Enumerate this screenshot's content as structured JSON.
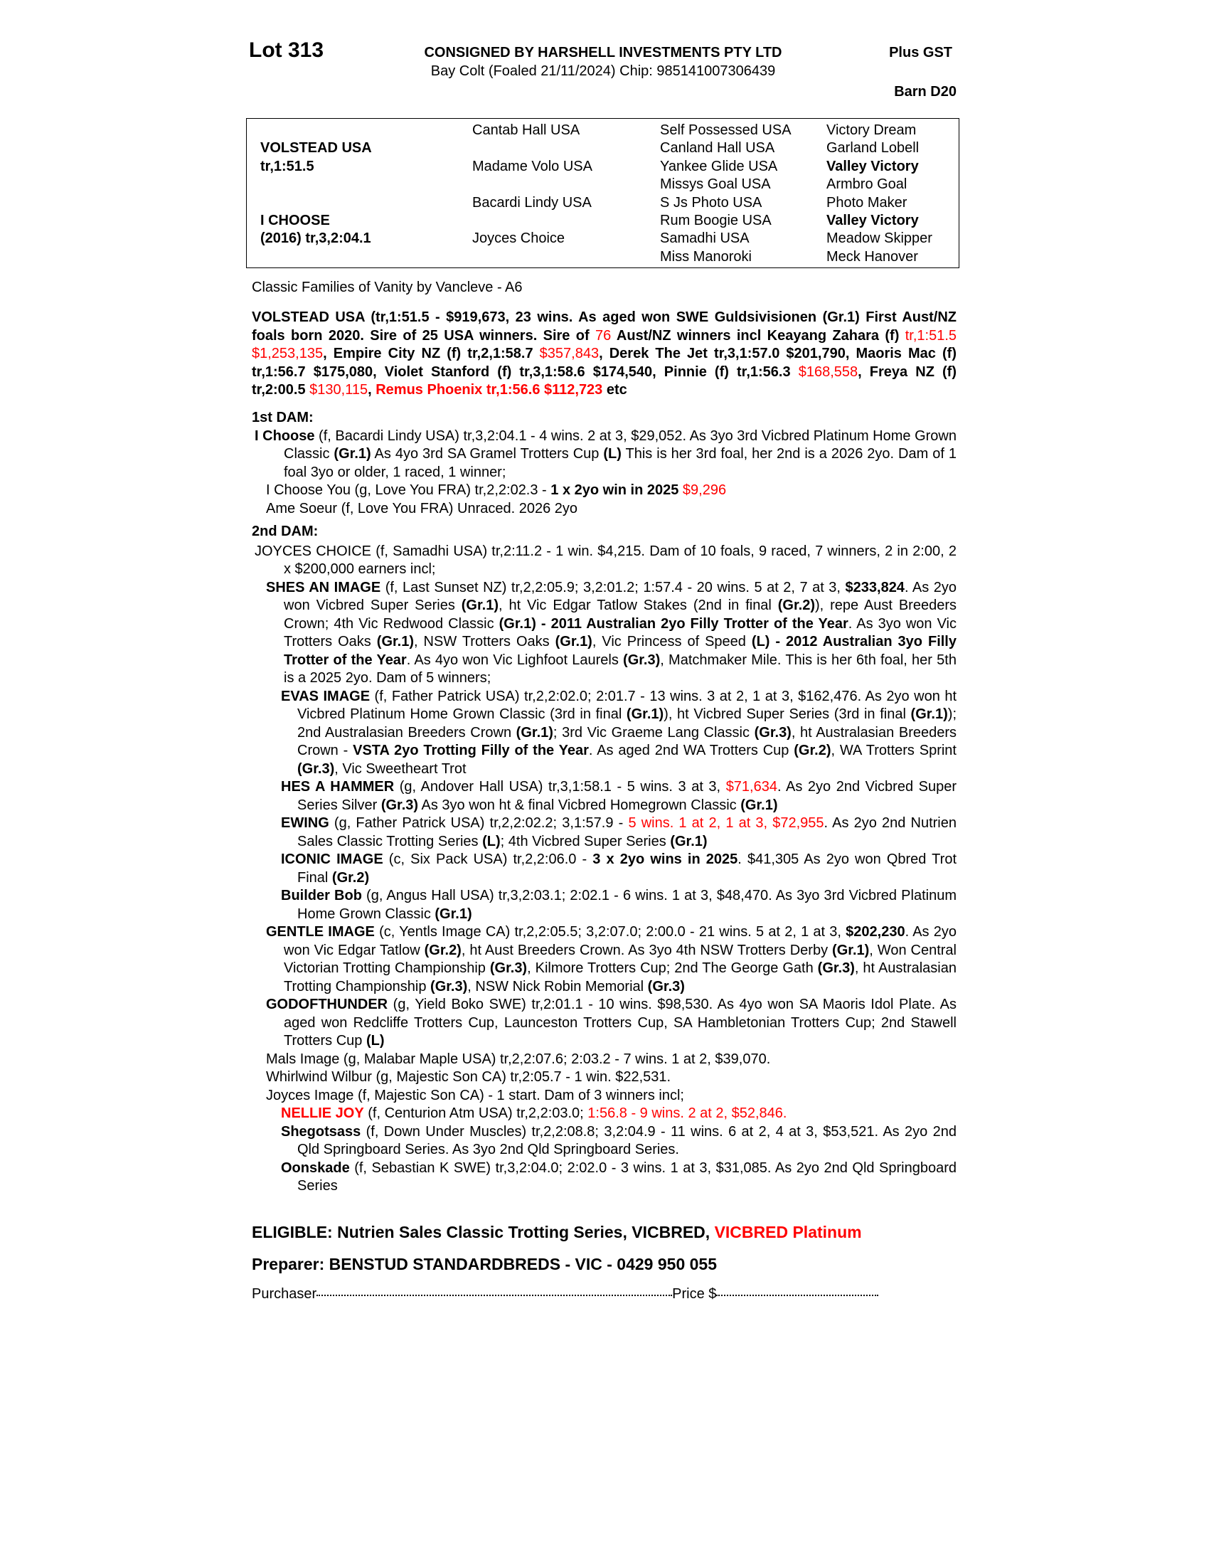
{
  "header": {
    "lot": "Lot 313",
    "consigned": "CONSIGNED BY HARSHELL INVESTMENTS PTY LTD",
    "description": "Bay Colt (Foaled 21/11/2024) Chip: 985141007306439",
    "gst": "Plus GST",
    "barn": "Barn D20"
  },
  "pedigree": {
    "col1": [
      {
        "row": 2,
        "text": "VOLSTEAD USA",
        "bold": true
      },
      {
        "row": 3,
        "text": "tr,1:51.5",
        "bold": true
      },
      {
        "row": 6,
        "text": "I CHOOSE",
        "bold": true
      },
      {
        "row": 7,
        "text": "(2016) tr,3,2:04.1",
        "bold": true
      }
    ],
    "col2": [
      {
        "row": 1,
        "text": "Cantab Hall USA"
      },
      {
        "row": 3,
        "text": "Madame Volo USA"
      },
      {
        "row": 5,
        "text": "Bacardi Lindy USA"
      },
      {
        "row": 7,
        "text": "Joyces Choice"
      }
    ],
    "col3": [
      {
        "row": 1,
        "text": "Self Possessed USA"
      },
      {
        "row": 2,
        "text": "Canland Hall USA"
      },
      {
        "row": 3,
        "text": "Yankee Glide USA"
      },
      {
        "row": 4,
        "text": "Missys Goal USA"
      },
      {
        "row": 5,
        "text": "S Js Photo USA"
      },
      {
        "row": 6,
        "text": "Rum Boogie USA"
      },
      {
        "row": 7,
        "text": "Samadhi USA"
      },
      {
        "row": 8,
        "text": "Miss Manoroki"
      }
    ],
    "col4": [
      {
        "row": 1,
        "text": "Victory Dream"
      },
      {
        "row": 2,
        "text": "Garland Lobell"
      },
      {
        "row": 3,
        "text": "Valley Victory",
        "bold": true
      },
      {
        "row": 4,
        "text": "Armbro Goal"
      },
      {
        "row": 5,
        "text": "Photo Maker"
      },
      {
        "row": 6,
        "text": "Valley Victory",
        "bold": true
      },
      {
        "row": 7,
        "text": "Meadow Skipper"
      },
      {
        "row": 8,
        "text": "Meck Hanover"
      }
    ]
  },
  "family": "Classic Families of Vanity by Vancleve - A6",
  "sire_para": [
    {
      "t": "VOLSTEAD USA (tr,1:51.5 - $919,673, 23 wins. As aged won SWE Guldsivisionen (Gr.1) First Aust/NZ foals born 2020. Sire of 25 USA winners. Sire of ",
      "s": "b"
    },
    {
      "t": "76",
      "s": "r"
    },
    {
      "t": " Aust/NZ winners incl Keayang Zahara (f) ",
      "s": "b"
    },
    {
      "t": "tr,1:51.5 $1,253,135",
      "s": "r"
    },
    {
      "t": ", Empire City NZ (f) tr,2,1:58.7 ",
      "s": "b"
    },
    {
      "t": "$357,843",
      "s": "r"
    },
    {
      "t": ", Derek The Jet tr,3,1:57.0 $201,790, Maoris Mac (f) tr,1:56.7 $175,080, Violet Stanford (f) tr,3,1:58.6 $174,540, Pinnie (f) tr,1:56.3 ",
      "s": "b"
    },
    {
      "t": "$168,558",
      "s": "r"
    },
    {
      "t": ", Freya NZ (f) tr,2:00.5 ",
      "s": "b"
    },
    {
      "t": "$130,115",
      "s": "r"
    },
    {
      "t": ", ",
      "s": "b"
    },
    {
      "t": "Remus Phoenix tr,1:56.6 $112,723",
      "s": "br"
    },
    {
      "t": " etc",
      "s": "b"
    }
  ],
  "dam1": {
    "heading": "1st DAM:",
    "entries": [
      {
        "level": 0,
        "runs": [
          {
            "t": "I Choose",
            "s": "b"
          },
          {
            "t": " (f, Bacardi Lindy USA) tr,3,2:04.1 - 4 wins. 2 at 3, $29,052. As 3yo 3rd Vicbred Platinum Home Grown Classic ",
            "s": ""
          },
          {
            "t": "(Gr.1)",
            "s": "b"
          },
          {
            "t": " As 4yo 3rd SA Gramel Trotters Cup ",
            "s": ""
          },
          {
            "t": "(L)",
            "s": "b"
          },
          {
            "t": " This is her 3rd foal, her 2nd is a 2026 2yo. Dam of 1 foal 3yo or older, 1 raced, 1 winner;",
            "s": ""
          }
        ]
      },
      {
        "level": 1,
        "runs": [
          {
            "t": "I Choose You (g, Love You FRA) tr,2,2:02.3 - ",
            "s": ""
          },
          {
            "t": "1 x 2yo win in 2025",
            "s": "b"
          },
          {
            "t": " $9,296",
            "s": "r"
          }
        ]
      },
      {
        "level": 1,
        "runs": [
          {
            "t": "Ame Soeur (f, Love You FRA) Unraced. 2026 2yo",
            "s": ""
          }
        ]
      }
    ]
  },
  "dam2": {
    "heading": "2nd DAM:",
    "entries": [
      {
        "level": 0,
        "runs": [
          {
            "t": "JOYCES CHOICE (f, Samadhi USA) tr,2:11.2 - 1 win. $4,215. Dam of 10 foals, 9 raced, 7 winners, 2 in 2:00, 2 x $200,000 earners incl;",
            "s": ""
          }
        ]
      },
      {
        "level": 1,
        "runs": [
          {
            "t": "SHES AN IMAGE",
            "s": "b"
          },
          {
            "t": " (f, Last Sunset NZ) tr,2,2:05.9; 3,2:01.2; 1:57.4 - 20 wins. 5 at 2, 7 at 3, ",
            "s": ""
          },
          {
            "t": "$233,824",
            "s": "b"
          },
          {
            "t": ". As 2yo won Vicbred Super Series ",
            "s": ""
          },
          {
            "t": "(Gr.1)",
            "s": "b"
          },
          {
            "t": ", ht Vic Edgar Tatlow Stakes (2nd in final ",
            "s": ""
          },
          {
            "t": "(Gr.2)",
            "s": "b"
          },
          {
            "t": "), repe Aust Breeders Crown; 4th Vic Redwood Classic ",
            "s": ""
          },
          {
            "t": "(Gr.1) - 2011 Australian 2yo Filly Trotter of the Year",
            "s": "b"
          },
          {
            "t": ". As 3yo won Vic Trotters Oaks ",
            "s": ""
          },
          {
            "t": "(Gr.1)",
            "s": "b"
          },
          {
            "t": ", NSW Trotters Oaks ",
            "s": ""
          },
          {
            "t": "(Gr.1)",
            "s": "b"
          },
          {
            "t": ", Vic Princess of Speed ",
            "s": ""
          },
          {
            "t": "(L) - 2012 Australian 3yo Filly Trotter of the Year",
            "s": "b"
          },
          {
            "t": ". As 4yo won Vic Lighfoot Laurels ",
            "s": ""
          },
          {
            "t": "(Gr.3)",
            "s": "b"
          },
          {
            "t": ", Matchmaker Mile. This is her 6th foal, her 5th is a 2025 2yo. Dam of 5 winners;",
            "s": ""
          }
        ]
      },
      {
        "level": 2,
        "runs": [
          {
            "t": "EVAS IMAGE",
            "s": "b"
          },
          {
            "t": " (f, Father Patrick USA) tr,2,2:02.0; 2:01.7 - 13 wins. 3 at 2, 1 at 3, $162,476. As 2yo won ht Vicbred Platinum Home Grown Classic (3rd in final ",
            "s": ""
          },
          {
            "t": "(Gr.1)",
            "s": "b"
          },
          {
            "t": "), ht Vicbred Super Series (3rd in final ",
            "s": ""
          },
          {
            "t": "(Gr.1)",
            "s": "b"
          },
          {
            "t": "); 2nd Australasian Breeders Crown ",
            "s": ""
          },
          {
            "t": "(Gr.1)",
            "s": "b"
          },
          {
            "t": "; 3rd Vic Graeme Lang Classic ",
            "s": ""
          },
          {
            "t": "(Gr.3)",
            "s": "b"
          },
          {
            "t": ", ht Australasian Breeders Crown - ",
            "s": ""
          },
          {
            "t": "VSTA 2yo Trotting Filly of the Year",
            "s": "b"
          },
          {
            "t": ". As aged 2nd WA Trotters Cup ",
            "s": ""
          },
          {
            "t": "(Gr.2)",
            "s": "b"
          },
          {
            "t": ", WA Trotters Sprint ",
            "s": ""
          },
          {
            "t": "(Gr.3)",
            "s": "b"
          },
          {
            "t": ", Vic Sweetheart Trot",
            "s": ""
          }
        ]
      },
      {
        "level": 2,
        "runs": [
          {
            "t": "HES A HAMMER",
            "s": "b"
          },
          {
            "t": " (g, Andover Hall USA) tr,3,1:58.1 - 5 wins. 3 at 3, ",
            "s": ""
          },
          {
            "t": "$71,634",
            "s": "r"
          },
          {
            "t": ". As 2yo 2nd Vicbred Super Series Silver ",
            "s": ""
          },
          {
            "t": "(Gr.3)",
            "s": "b"
          },
          {
            "t": " As 3yo won ht & final Vicbred Homegrown Classic ",
            "s": ""
          },
          {
            "t": "(Gr.1)",
            "s": "b"
          }
        ]
      },
      {
        "level": 2,
        "runs": [
          {
            "t": "EWING",
            "s": "b"
          },
          {
            "t": " (g, Father Patrick USA) tr,2,2:02.2; 3,1:57.9 - ",
            "s": ""
          },
          {
            "t": "5 wins. 1 at 2, 1 at 3, $72,955",
            "s": "r"
          },
          {
            "t": ". As 2yo 2nd Nutrien Sales Classic Trotting Series ",
            "s": ""
          },
          {
            "t": "(L)",
            "s": "b"
          },
          {
            "t": "; 4th Vicbred Super Series ",
            "s": ""
          },
          {
            "t": "(Gr.1)",
            "s": "b"
          }
        ]
      },
      {
        "level": 2,
        "runs": [
          {
            "t": "ICONIC IMAGE",
            "s": "b"
          },
          {
            "t": " (c, Six Pack USA) tr,2,2:06.0 - ",
            "s": ""
          },
          {
            "t": "3 x 2yo wins in 2025",
            "s": "b"
          },
          {
            "t": ". $41,305 As 2yo won Qbred Trot Final ",
            "s": ""
          },
          {
            "t": "(Gr.2)",
            "s": "b"
          }
        ]
      },
      {
        "level": 2,
        "runs": [
          {
            "t": "Builder Bob",
            "s": "b"
          },
          {
            "t": " (g, Angus Hall USA) tr,3,2:03.1; 2:02.1 - 6 wins. 1 at 3, $48,470. As 3yo 3rd Vicbred Platinum Home Grown Classic ",
            "s": ""
          },
          {
            "t": "(Gr.1)",
            "s": "b"
          }
        ]
      },
      {
        "level": 1,
        "runs": [
          {
            "t": "GENTLE IMAGE",
            "s": "b"
          },
          {
            "t": " (c, Yentls Image CA) tr,2,2:05.5; 3,2:07.0; 2:00.0 - 21 wins. 5 at 2, 1 at 3, ",
            "s": ""
          },
          {
            "t": "$202,230",
            "s": "b"
          },
          {
            "t": ". As 2yo won Vic Edgar Tatlow ",
            "s": ""
          },
          {
            "t": "(Gr.2)",
            "s": "b"
          },
          {
            "t": ", ht Aust Breeders Crown. As 3yo 4th NSW Trotters Derby ",
            "s": ""
          },
          {
            "t": "(Gr.1)",
            "s": "b"
          },
          {
            "t": ", Won Central Victorian Trotting Championship ",
            "s": ""
          },
          {
            "t": "(Gr.3)",
            "s": "b"
          },
          {
            "t": ", Kilmore Trotters Cup; 2nd The George Gath ",
            "s": ""
          },
          {
            "t": "(Gr.3)",
            "s": "b"
          },
          {
            "t": ", ht Australasian Trotting Championship ",
            "s": ""
          },
          {
            "t": "(Gr.3)",
            "s": "b"
          },
          {
            "t": ", NSW Nick Robin Memorial ",
            "s": ""
          },
          {
            "t": "(Gr.3)",
            "s": "b"
          }
        ]
      },
      {
        "level": 1,
        "runs": [
          {
            "t": "GODOFTHUNDER",
            "s": "b"
          },
          {
            "t": " (g, Yield Boko SWE) tr,2:01.1 - 10 wins. $98,530. As 4yo won SA Maoris Idol Plate. As aged won Redcliffe Trotters Cup, Launceston Trotters Cup, SA Hambletonian Trotters Cup; 2nd Stawell Trotters Cup ",
            "s": ""
          },
          {
            "t": "(L)",
            "s": "b"
          }
        ]
      },
      {
        "level": 1,
        "runs": [
          {
            "t": "Mals Image (g, Malabar Maple USA) tr,2,2:07.6; 2:03.2 - 7 wins. 1 at 2, $39,070.",
            "s": ""
          }
        ]
      },
      {
        "level": 1,
        "runs": [
          {
            "t": "Whirlwind Wilbur (g, Majestic Son CA) tr,2:05.7 - 1 win. $22,531.",
            "s": ""
          }
        ]
      },
      {
        "level": 1,
        "runs": [
          {
            "t": "Joyces Image (f, Majestic Son CA) - 1 start. Dam of 3 winners incl;",
            "s": ""
          }
        ]
      },
      {
        "level": 2,
        "runs": [
          {
            "t": "NELLIE JOY",
            "s": "br"
          },
          {
            "t": " (f, Centurion Atm USA) tr,2,2:03.0; ",
            "s": ""
          },
          {
            "t": "1:56.8 - 9 wins. 2 at 2, $52,846.",
            "s": "r"
          }
        ]
      },
      {
        "level": 2,
        "runs": [
          {
            "t": "Shegotsass",
            "s": "b"
          },
          {
            "t": " (f, Down Under Muscles) tr,2,2:08.8; 3,2:04.9 - 11 wins. 6 at 2, 4 at 3, $53,521. As 2yo 2nd Qld Springboard Series. As 3yo 2nd Qld Springboard Series.",
            "s": ""
          }
        ]
      },
      {
        "level": 2,
        "runs": [
          {
            "t": "Oonskade",
            "s": "b"
          },
          {
            "t": " (f, Sebastian K SWE) tr,3,2:04.0; 2:02.0 - 3 wins. 1 at 3, $31,085. As 2yo 2nd Qld Springboard Series",
            "s": ""
          }
        ]
      }
    ]
  },
  "eligible": [
    {
      "t": "ELIGIBLE: Nutrien Sales Classic Trotting Series, VICBRED, ",
      "s": "b"
    },
    {
      "t": "VICBRED Platinum",
      "s": "br"
    }
  ],
  "preparer": "Preparer: BENSTUD STANDARDBREDS - VIC - 0429 950 055",
  "purchase": {
    "purchaser_label": "Purchaser",
    "price_label": "Price $"
  },
  "colors": {
    "highlight": "#ff0000",
    "text": "#000000"
  }
}
